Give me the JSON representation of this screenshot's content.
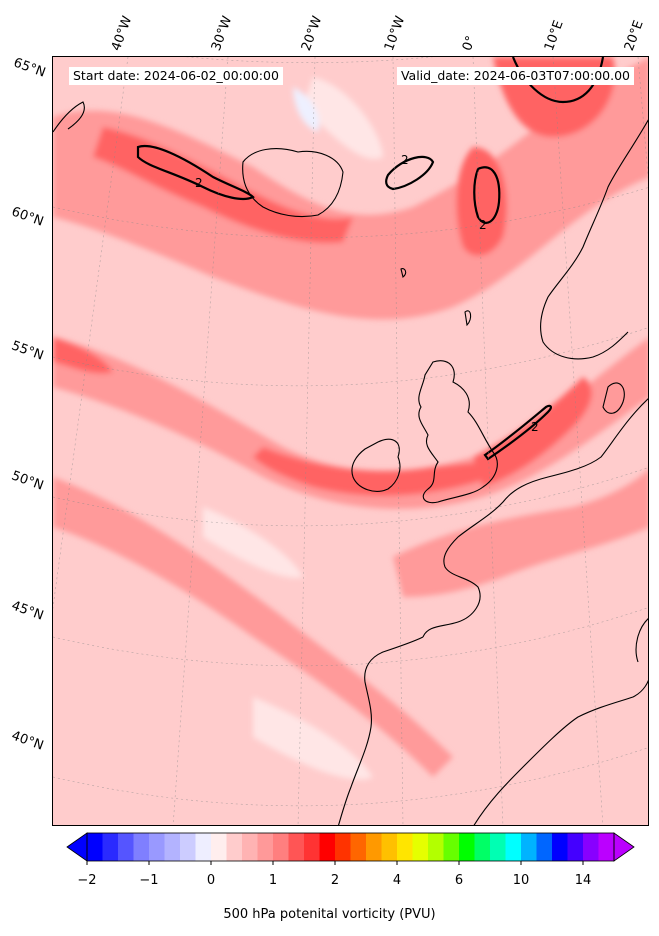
{
  "map": {
    "start_date_text": "Start date: 2024-06-02_00:00:00",
    "valid_date_text": "Valid_date: 2024-06-03T07:00:00.00",
    "contour_label": "2",
    "variable": "500 hPa potential vorticity",
    "colors": {
      "background_pv": "#ffcccc",
      "low_pv": "#ffe6e6",
      "mid_pv": "#ff9a9a",
      "high_pv": "#ff6464",
      "peak_pv": "#ff2020",
      "negative_pv": "#eef0ff",
      "coastline": "#000000"
    }
  },
  "graticule": {
    "lon_labels": [
      "40°W",
      "30°W",
      "20°W",
      "10°W",
      "0°",
      "10°E",
      "20°E"
    ],
    "lat_labels": [
      "65°N",
      "60°N",
      "55°N",
      "50°N",
      "45°N",
      "40°N"
    ]
  },
  "colorbar": {
    "colors": [
      "#0000ff",
      "#2a2aff",
      "#5555ff",
      "#7f7fff",
      "#9999ff",
      "#b3b3ff",
      "#ccccff",
      "#eeeeff",
      "#ffeeee",
      "#ffcccc",
      "#ffb3b3",
      "#ff9999",
      "#ff7f7f",
      "#ff5555",
      "#ff3333",
      "#ff0000",
      "#ff3300",
      "#ff6600",
      "#ff9900",
      "#ffc000",
      "#ffe500",
      "#e5ff00",
      "#b3ff00",
      "#66ff00",
      "#00ff00",
      "#00ff66",
      "#00ffb3",
      "#00ffff",
      "#00b3ff",
      "#0066ff",
      "#0000ff",
      "#4400ff",
      "#8800ff",
      "#bb00ff"
    ],
    "under_color": "#0000ff",
    "over_color": "#bb00ff",
    "tick_labels": [
      "−2",
      "−1",
      "0",
      "1",
      "2",
      "4",
      "6",
      "10",
      "14"
    ],
    "tick_index": [
      0,
      4,
      8,
      12,
      16,
      20,
      24,
      28,
      32
    ],
    "label": "500 hPa potenital vorticity (PVU)"
  }
}
